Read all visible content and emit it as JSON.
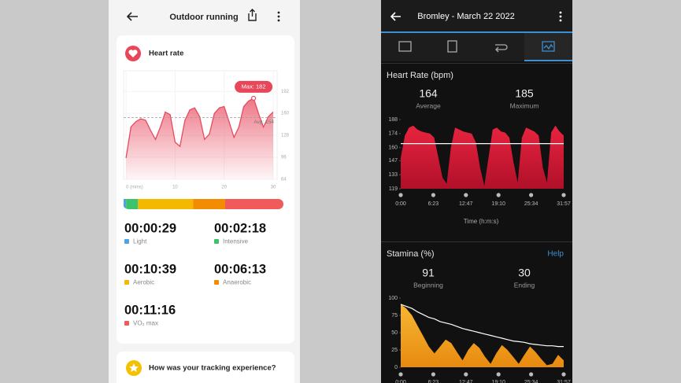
{
  "left": {
    "header": {
      "title": "Outdoor running"
    },
    "heart_rate": {
      "title": "Heart rate",
      "chart": {
        "type": "area",
        "color": "#e84a5f",
        "x": [
          0,
          1,
          2,
          3,
          4,
          5,
          6,
          7,
          8,
          9,
          10,
          11,
          12,
          13,
          14,
          15,
          16,
          17,
          18,
          19,
          20,
          21,
          22,
          23,
          24,
          25,
          26,
          27,
          28,
          29,
          30
        ],
        "values": [
          95,
          140,
          148,
          152,
          150,
          135,
          122,
          140,
          162,
          158,
          118,
          112,
          150,
          165,
          168,
          155,
          122,
          130,
          160,
          168,
          170,
          148,
          125,
          140,
          170,
          178,
          182,
          160,
          140,
          155,
          162
        ],
        "xlim": [
          -0.5,
          30.8
        ],
        "ylim": [
          64,
          222
        ],
        "xticks": [
          {
            "value": 0,
            "label": "0 (mins)"
          },
          10,
          20,
          30
        ],
        "yticks": [
          64,
          96,
          128,
          160,
          192
        ],
        "max_label": "Max: 182",
        "average": 154,
        "avg_label": "Avg: 154"
      },
      "zones": [
        {
          "time": "00:00:29",
          "label": "Light",
          "color": "#4fa3e0"
        },
        {
          "time": "00:02:18",
          "label": "Intensive",
          "color": "#3cc36b"
        },
        {
          "time": "00:10:39",
          "label": "Aerobic",
          "color": "#f5b800"
        },
        {
          "time": "00:06:13",
          "label": "Anaerobic",
          "color": "#f28c00"
        },
        {
          "time": "00:11:16",
          "label": "VO₂ max",
          "color": "#f05a5a"
        }
      ]
    },
    "feedback": {
      "title": "How was your tracking experience?"
    }
  },
  "right": {
    "header": {
      "title": "Bromley - March 22 2022"
    },
    "heart_rate": {
      "title": "Heart Rate (bpm)",
      "stats": [
        {
          "value": 164,
          "label": "Average"
        },
        {
          "value": 185,
          "label": "Maximum"
        }
      ],
      "chart": {
        "type": "area",
        "color": "#d81e3c",
        "values": [
          150,
          172,
          180,
          182,
          178,
          176,
          175,
          174,
          170,
          150,
          130,
          124,
          160,
          180,
          178,
          176,
          175,
          174,
          165,
          140,
          122,
          150,
          178,
          180,
          176,
          175,
          170,
          145,
          125,
          170,
          180,
          178,
          176,
          172,
          140,
          125,
          175,
          182,
          176,
          172
        ],
        "ylim": [
          119,
          188
        ],
        "yticks": [
          119,
          133,
          147,
          160,
          174,
          188
        ],
        "x_labels": [
          "0:00",
          "6:23",
          "12:47",
          "19:10",
          "25:34",
          "31:57"
        ],
        "xlabel": "Time (h:m:s)"
      }
    },
    "stamina": {
      "title": "Stamina (%)",
      "help": "Help",
      "stats": [
        {
          "value": 91,
          "label": "Beginning"
        },
        {
          "value": 30,
          "label": "Ending"
        }
      ],
      "chart": {
        "type": "area",
        "ylim": [
          0,
          100
        ],
        "yticks": [
          0,
          25,
          50,
          75,
          100
        ],
        "series": [
          {
            "color": "#f5a623",
            "values": [
              91,
              85,
              75,
              60,
              45,
              30,
              20,
              30,
              40,
              35,
              22,
              10,
              25,
              35,
              28,
              15,
              5,
              20,
              32,
              25,
              15,
              5,
              18,
              30,
              22,
              12,
              3,
              5,
              18,
              10
            ]
          },
          {
            "color": "#ffffff",
            "values": [
              91,
              88,
              85,
              80,
              76,
              72,
              70,
              66,
              64,
              62,
              59,
              56,
              54,
              52,
              50,
              48,
              46,
              44,
              42,
              40,
              38,
              37,
              36,
              34,
              33,
              32,
              31,
              31,
              30,
              30
            ]
          }
        ],
        "x_labels": [
          "0:00",
          "6:23",
          "12:47",
          "19:10",
          "25:34",
          "31:57"
        ]
      }
    }
  }
}
